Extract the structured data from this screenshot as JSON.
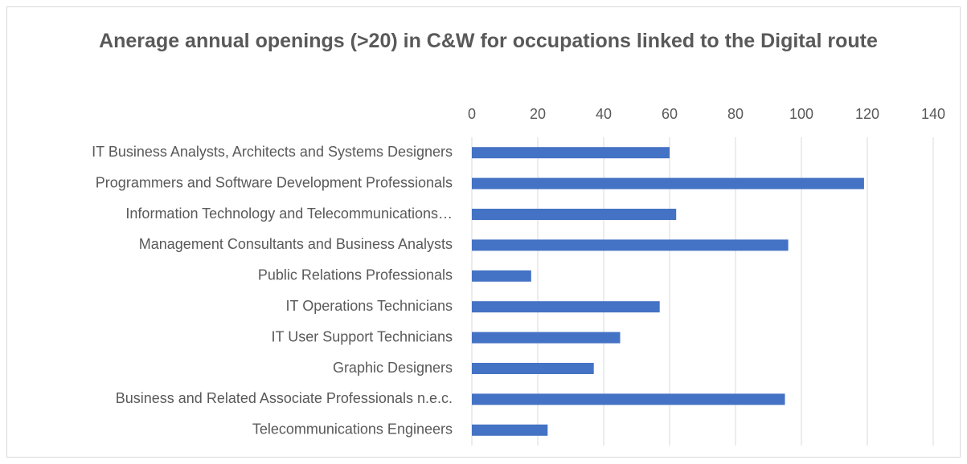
{
  "chart_data": {
    "type": "bar",
    "orientation": "horizontal",
    "title": "Anerage annual openings (>20) in C&W for occupations linked to the Digital route",
    "categories": [
      "IT Business Analysts, Architects and Systems Designers",
      "Programmers and Software Development Professionals",
      "Information Technology and Telecommunications…",
      "Management Consultants and Business Analysts",
      "Public Relations Professionals",
      "IT Operations Technicians",
      "IT User Support Technicians",
      "Graphic Designers",
      "Business and Related Associate Professionals n.e.c.",
      "Telecommunications Engineers"
    ],
    "values": [
      60,
      119,
      62,
      96,
      18,
      57,
      45,
      37,
      95,
      23
    ],
    "color": "#4472c4",
    "xlim": [
      0,
      140
    ],
    "xticks": [
      0,
      20,
      40,
      60,
      80,
      100,
      120,
      140
    ],
    "grid": true
  }
}
